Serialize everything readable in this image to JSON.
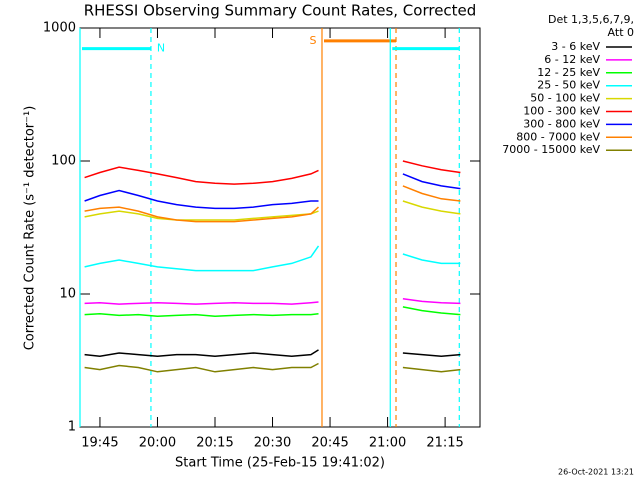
{
  "chart_data": {
    "type": "line",
    "title": "RHESSI Observing Summary Count Rates, Corrected",
    "xlabel": "Start Time (25-Feb-15 19:41:02)",
    "ylabel": "Corrected Count Rate (s⁻¹ detector⁻¹)",
    "legend_header": [
      "Det 1,3,5,6,7,9,",
      "Att 0"
    ],
    "footer": "26-Oct-2021 13:21",
    "log_y": true,
    "legend": "outside-right",
    "xlim": [
      1179.8,
      1284.1
    ],
    "ylim": [
      1,
      1000
    ],
    "yticks": [
      1,
      10,
      100,
      1000
    ],
    "xticks": [
      {
        "value": 1185,
        "label": "19:45"
      },
      {
        "value": 1200,
        "label": "20:00"
      },
      {
        "value": 1215,
        "label": "20:15"
      },
      {
        "value": 1230,
        "label": "20:30"
      },
      {
        "value": 1245,
        "label": "20:45"
      },
      {
        "value": 1260,
        "label": "21:00"
      },
      {
        "value": 1275,
        "label": "21:15"
      }
    ],
    "x": [
      1181,
      1185,
      1190,
      1195,
      1200,
      1205,
      1210,
      1215,
      1220,
      1225,
      1230,
      1235,
      1240,
      1242,
      1253,
      1264,
      1269,
      1274,
      1279
    ],
    "series": [
      {
        "name": "3 - 6 keV",
        "color": "#000000",
        "values": [
          3.5,
          3.4,
          3.6,
          3.5,
          3.4,
          3.5,
          3.5,
          3.4,
          3.5,
          3.6,
          3.5,
          3.4,
          3.5,
          3.8,
          null,
          3.6,
          3.5,
          3.4,
          3.5
        ]
      },
      {
        "name": "6 - 12 keV",
        "color": "#ff00ff",
        "values": [
          8.5,
          8.6,
          8.4,
          8.5,
          8.6,
          8.5,
          8.4,
          8.5,
          8.6,
          8.5,
          8.5,
          8.4,
          8.6,
          8.7,
          null,
          9.2,
          8.8,
          8.6,
          8.5
        ]
      },
      {
        "name": "12 - 25 keV",
        "color": "#00ff00",
        "values": [
          7.0,
          7.1,
          6.9,
          7.0,
          6.8,
          6.9,
          7.0,
          6.8,
          6.9,
          7.0,
          6.9,
          7.0,
          7.0,
          7.1,
          null,
          8.0,
          7.5,
          7.2,
          7.0
        ]
      },
      {
        "name": "25 - 50 keV",
        "color": "#00ffff",
        "values": [
          16,
          17,
          18,
          17,
          16,
          15.5,
          15,
          15,
          15,
          15,
          16,
          17,
          19,
          23,
          null,
          20,
          18,
          17,
          17
        ]
      },
      {
        "name": "50 - 100 keV",
        "color": "#d8d800",
        "values": [
          38,
          40,
          42,
          40,
          37,
          36,
          36,
          36,
          36,
          37,
          38,
          39,
          40,
          42,
          null,
          50,
          45,
          42,
          40
        ]
      },
      {
        "name": "100 - 300 keV",
        "color": "#ff0000",
        "values": [
          75,
          82,
          90,
          85,
          80,
          75,
          70,
          68,
          67,
          68,
          70,
          74,
          80,
          85,
          null,
          100,
          92,
          86,
          82
        ]
      },
      {
        "name": "300 - 800 keV",
        "color": "#0000ff",
        "values": [
          50,
          55,
          60,
          55,
          50,
          47,
          45,
          44,
          44,
          45,
          47,
          48,
          50,
          50,
          null,
          80,
          70,
          65,
          62
        ]
      },
      {
        "name": "800 - 7000 keV",
        "color": "#ff8000",
        "values": [
          42,
          44,
          45,
          42,
          38,
          36,
          35,
          35,
          35,
          36,
          37,
          38,
          40,
          45,
          null,
          65,
          57,
          52,
          50
        ]
      },
      {
        "name": "7000 - 15000 keV",
        "color": "#808000",
        "values": [
          2.8,
          2.7,
          2.9,
          2.8,
          2.6,
          2.7,
          2.8,
          2.6,
          2.7,
          2.8,
          2.7,
          2.8,
          2.8,
          3.0,
          null,
          2.8,
          2.7,
          2.6,
          2.7
        ]
      }
    ],
    "intervals": [
      {
        "label": "N",
        "color": "#00ffff",
        "start": 1179.8,
        "end": 1198.3,
        "level": 700
      },
      {
        "label": "S",
        "color": "#ff8000",
        "start": 1242.9,
        "end": 1262.2,
        "level": 800
      },
      {
        "color": "#00ffff",
        "start": 1260.7,
        "end": 1278.7,
        "level": 700
      }
    ]
  }
}
